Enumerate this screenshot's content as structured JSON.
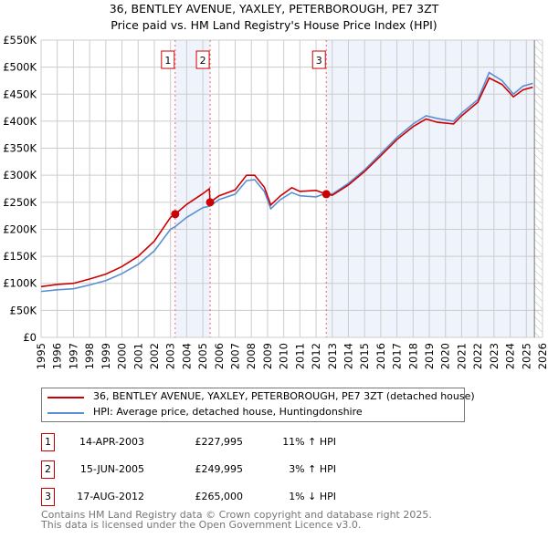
{
  "chart_data": {
    "type": "line",
    "title": "36, BENTLEY AVENUE, YAXLEY, PETERBOROUGH, PE7 3ZT",
    "subtitle": "Price paid vs. HM Land Registry's House Price Index (HPI)",
    "xlim": [
      1995,
      2026
    ],
    "ylim": [
      0,
      550000
    ],
    "y_ticks": [
      0,
      50000,
      100000,
      150000,
      200000,
      250000,
      300000,
      350000,
      400000,
      450000,
      500000,
      550000
    ],
    "y_tick_labels": [
      "£0",
      "£50K",
      "£100K",
      "£150K",
      "£200K",
      "£250K",
      "£300K",
      "£350K",
      "£400K",
      "£450K",
      "£500K",
      "£550K"
    ],
    "x_tick_labels": [
      "1995",
      "1996",
      "1997",
      "1998",
      "1999",
      "2000",
      "2001",
      "2002",
      "2003",
      "2004",
      "2005",
      "2006",
      "2007",
      "2008",
      "2009",
      "2010",
      "2011",
      "2012",
      "2013",
      "2014",
      "2015",
      "2016",
      "2017",
      "2018",
      "2019",
      "2020",
      "2021",
      "2022",
      "2023",
      "2024",
      "2025",
      "2026"
    ],
    "grid": true,
    "series": [
      {
        "name": "36, BENTLEY AVENUE, YAXLEY, PETERBOROUGH, PE7 3ZT (detached house)",
        "color": "#cc0000",
        "x": [
          1995,
          1996,
          1997,
          1998,
          1999,
          2000,
          2001,
          2002,
          2003,
          2003.29,
          2004,
          2005,
          2005.4,
          2005.45,
          2006,
          2007,
          2007.7,
          2008.2,
          2008.8,
          2009.2,
          2009.8,
          2010.5,
          2011,
          2012,
          2012.63,
          2013,
          2014,
          2015,
          2016,
          2017,
          2018,
          2018.8,
          2019.5,
          2020.5,
          2021,
          2022,
          2022.7,
          2023.5,
          2024.2,
          2024.8,
          2025.4
        ],
        "y": [
          94000,
          98000,
          100000,
          108000,
          117000,
          131000,
          150000,
          178000,
          222000,
          228000,
          246000,
          266000,
          275000,
          250000,
          262000,
          273000,
          300000,
          300000,
          278000,
          245000,
          262000,
          277000,
          270000,
          272000,
          265000,
          263000,
          282000,
          307000,
          336000,
          366000,
          390000,
          404000,
          398000,
          395000,
          410000,
          435000,
          480000,
          468000,
          445000,
          458000,
          463000
        ]
      },
      {
        "name": "HPI: Average price, detached house, Huntingdonshire",
        "color": "#5b8fd4",
        "x": [
          1995,
          1996,
          1997,
          1998,
          1999,
          2000,
          2001,
          2002,
          2003,
          2003.29,
          2004,
          2005,
          2005.45,
          2006,
          2007,
          2007.7,
          2008.2,
          2008.8,
          2009.2,
          2009.8,
          2010.5,
          2011,
          2012,
          2012.63,
          2013,
          2014,
          2015,
          2016,
          2017,
          2018,
          2018.8,
          2019.5,
          2020.5,
          2021,
          2022,
          2022.7,
          2023.5,
          2024.2,
          2024.8,
          2025.4
        ],
        "y": [
          85000,
          88000,
          90000,
          97000,
          105000,
          118000,
          135000,
          160000,
          200000,
          205000,
          222000,
          240000,
          243000,
          255000,
          265000,
          290000,
          292000,
          270000,
          238000,
          255000,
          268000,
          262000,
          260000,
          267000,
          265000,
          285000,
          310000,
          340000,
          370000,
          395000,
          410000,
          405000,
          400000,
          415000,
          440000,
          490000,
          475000,
          450000,
          465000,
          470000
        ]
      }
    ],
    "sales": [
      {
        "label": "1",
        "x": 2003.29,
        "y": 227995,
        "date": "14-APR-2003",
        "price": "£227,995",
        "hpi": "11% ↑ HPI"
      },
      {
        "label": "2",
        "x": 2005.45,
        "y": 249995,
        "date": "15-JUN-2005",
        "price": "£249,995",
        "hpi": "3% ↑ HPI"
      },
      {
        "label": "3",
        "x": 2012.63,
        "y": 265000,
        "date": "17-AUG-2012",
        "price": "£265,000",
        "hpi": "1% ↓ HPI"
      }
    ],
    "forecast_start": 2025.5
  },
  "legend": {
    "property": "36, BENTLEY AVENUE, YAXLEY, PETERBOROUGH, PE7 3ZT (detached house)",
    "hpi": "HPI: Average price, detached house, Huntingdonshire"
  },
  "footer": {
    "line1": "Contains HM Land Registry data © Crown copyright and database right 2025.",
    "line2": "This data is licensed under the Open Government Licence v3.0."
  },
  "colors": {
    "property": "#cc0000",
    "hpi": "#5b8fd4",
    "shade": "#eef3fc",
    "grid": "#cccccc"
  }
}
